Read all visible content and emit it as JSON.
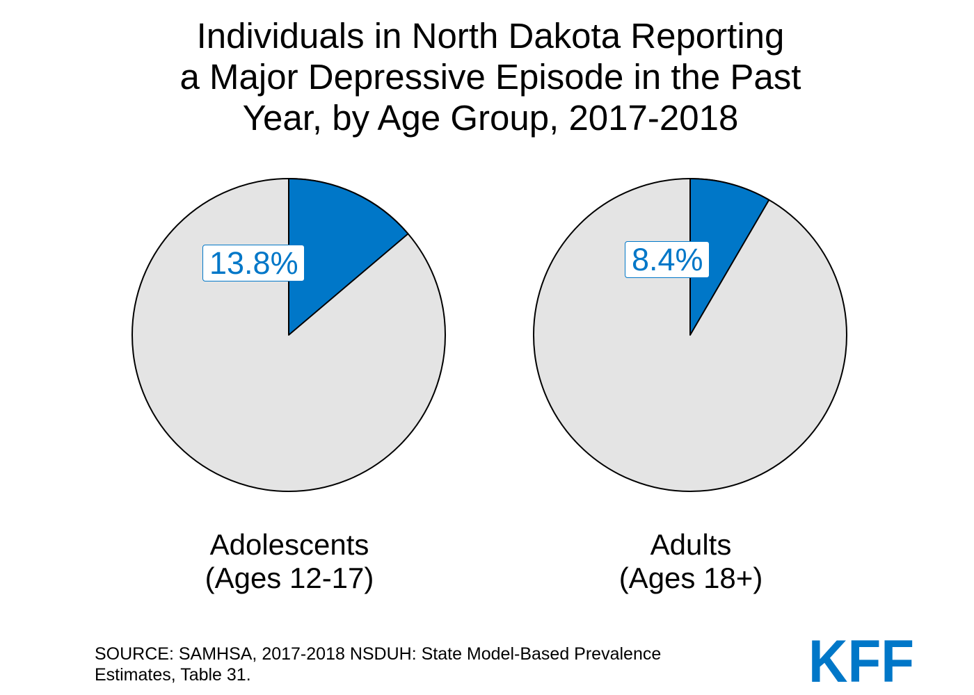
{
  "chart_data": {
    "type": "pie",
    "title_lines": [
      "Individuals in North Dakota Reporting",
      "a Major Depressive Episode in the Past",
      "Year, by Age Group, 2017-2018"
    ],
    "charts": [
      {
        "label_lines": [
          "Adolescents",
          "(Ages 12-17)"
        ],
        "value": 13.8,
        "value_label": "13.8%"
      },
      {
        "label_lines": [
          "Adults",
          "(Ages 18+)"
        ],
        "value": 8.4,
        "value_label": "8.4%"
      }
    ],
    "colors": {
      "highlight": "#0077c8",
      "remainder": "#e4e4e4",
      "outline": "#000000"
    }
  },
  "source_lines": [
    "SOURCE: SAMHSA, 2017-2018 NSDUH: State Model-Based Prevalence",
    "Estimates, Table 31."
  ],
  "logo": {
    "text": "KFF",
    "color": "#0077c8"
  }
}
